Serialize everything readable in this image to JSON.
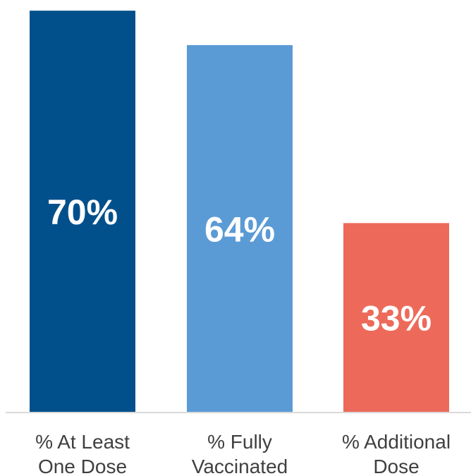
{
  "chart_data": {
    "type": "bar",
    "categories": [
      [
        "% At Least",
        "One Dose"
      ],
      [
        "% Fully",
        "Vaccinated"
      ],
      [
        "% Additional",
        "Dose"
      ]
    ],
    "values": [
      70,
      64,
      33
    ],
    "data_labels": [
      "70%",
      "64%",
      "33%"
    ],
    "colors": [
      "#02508b",
      "#5b9bd5",
      "#ed6a5a"
    ],
    "axis_color": "#d9d9d9",
    "ylim": [
      0,
      71
    ],
    "grid": false,
    "title": "",
    "xlabel": "",
    "ylabel": ""
  }
}
